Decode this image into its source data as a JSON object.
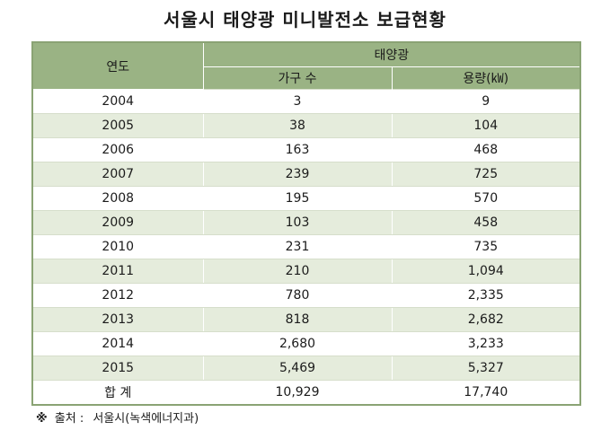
{
  "title": "서울시 태양광 미니발전소 보급현황",
  "table": {
    "header_year": "연도",
    "header_group": "태양광",
    "header_households": "가구 수",
    "header_capacity": "용량(㎾)",
    "rows": [
      {
        "year": "2004",
        "households": "3",
        "capacity": "9"
      },
      {
        "year": "2005",
        "households": "38",
        "capacity": "104"
      },
      {
        "year": "2006",
        "households": "163",
        "capacity": "468"
      },
      {
        "year": "2007",
        "households": "239",
        "capacity": "725"
      },
      {
        "year": "2008",
        "households": "195",
        "capacity": "570"
      },
      {
        "year": "2009",
        "households": "103",
        "capacity": "458"
      },
      {
        "year": "2010",
        "households": "231",
        "capacity": "735"
      },
      {
        "year": "2011",
        "households": "210",
        "capacity": "1,094"
      },
      {
        "year": "2012",
        "households": "780",
        "capacity": "2,335"
      },
      {
        "year": "2013",
        "households": "818",
        "capacity": "2,682"
      },
      {
        "year": "2014",
        "households": "2,680",
        "capacity": "3,233"
      },
      {
        "year": "2015",
        "households": "5,469",
        "capacity": "5,327"
      }
    ],
    "total": {
      "label": "합 계",
      "households": "10,929",
      "capacity": "17,740"
    }
  },
  "footer": {
    "mark": "※",
    "label": "출처 :",
    "source": "서울시(녹색에너지과)"
  },
  "colors": {
    "header_bg": "#9ab384",
    "stripe_bg": "#e5ecdc",
    "border": "#8aa374"
  }
}
